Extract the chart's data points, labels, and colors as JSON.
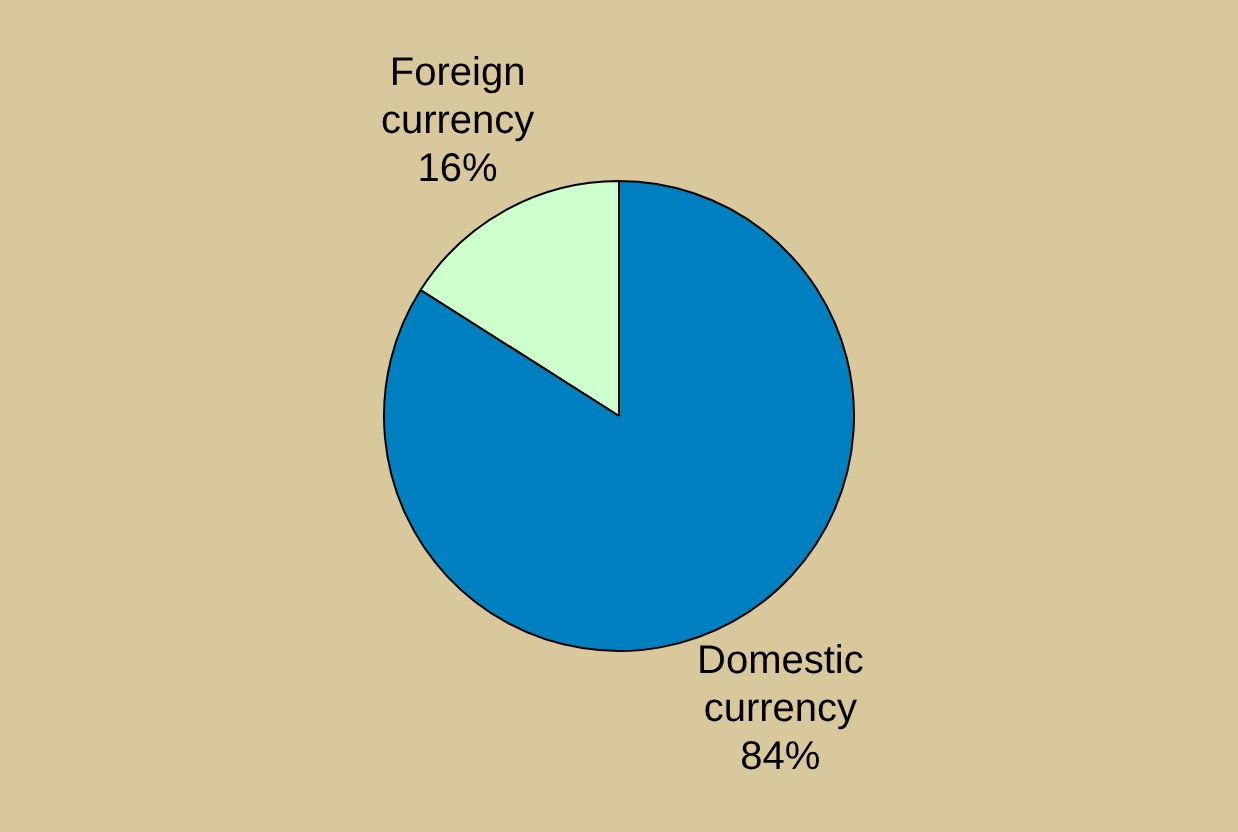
{
  "chart_data": {
    "type": "pie",
    "categories": [
      "Foreign currency",
      "Domestic currency"
    ],
    "values": [
      16,
      84
    ],
    "colors": [
      "#ccffcc",
      "#0080c0"
    ],
    "value_labels": [
      "16%",
      "84%"
    ],
    "legend": false
  }
}
